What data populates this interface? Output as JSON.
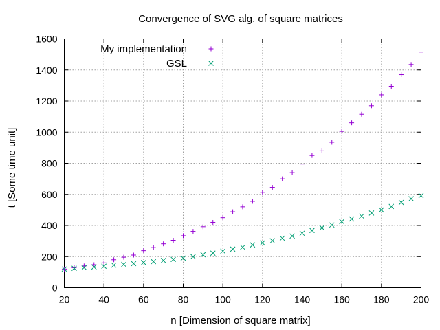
{
  "chart_data": {
    "type": "scatter",
    "title": "Convergence of SVG alg. of square matrices",
    "xlabel": "n [Dimension of square matrix]",
    "ylabel": "t [Some time unit]",
    "xlim": [
      20,
      200
    ],
    "ylim": [
      0,
      1600
    ],
    "x_ticks": [
      20,
      40,
      60,
      80,
      100,
      120,
      140,
      160,
      180,
      200
    ],
    "y_ticks": [
      0,
      200,
      400,
      600,
      800,
      1000,
      1200,
      1400,
      1600
    ],
    "grid": true,
    "legend_position": "top-left",
    "x": [
      20,
      25,
      30,
      35,
      40,
      45,
      50,
      55,
      60,
      65,
      70,
      75,
      80,
      85,
      90,
      95,
      100,
      105,
      110,
      115,
      120,
      125,
      130,
      135,
      140,
      145,
      150,
      155,
      160,
      165,
      170,
      175,
      180,
      185,
      190,
      195,
      200
    ],
    "series": [
      {
        "name": "My implementation",
        "marker": "plus",
        "color": "#9400d3",
        "values": [
          120,
          128,
          140,
          148,
          160,
          180,
          196,
          210,
          238,
          258,
          282,
          305,
          334,
          362,
          392,
          420,
          450,
          488,
          520,
          555,
          613,
          645,
          700,
          740,
          795,
          850,
          880,
          935,
          1005,
          1060,
          1115,
          1170,
          1240,
          1295,
          1370,
          1435,
          1515
        ]
      },
      {
        "name": "GSL",
        "marker": "x",
        "color": "#009e73",
        "values": [
          120,
          125,
          130,
          133,
          138,
          145,
          150,
          155,
          162,
          168,
          175,
          182,
          190,
          200,
          212,
          222,
          235,
          248,
          260,
          275,
          288,
          302,
          318,
          332,
          350,
          368,
          385,
          403,
          425,
          442,
          460,
          480,
          500,
          522,
          548,
          572,
          592
        ]
      }
    ]
  }
}
